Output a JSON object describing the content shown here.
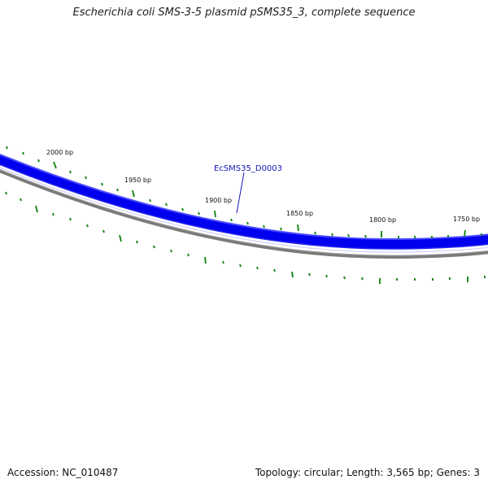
{
  "title": "Escherichia coli SMS-3-5 plasmid pSMS35_3, complete sequence",
  "footer": {
    "accession": "Accession: NC_010487",
    "summary": "Topology: circular; Length: 3,565 bp; Genes: 3"
  },
  "colors": {
    "gene_track": "#0000ee",
    "gene_track_edge": "#2a2aff",
    "backbone": "#808080",
    "ticks": "#1f8a1f",
    "label_text": "#111111",
    "gene_label": "#1515b8"
  },
  "map": {
    "length_bp": 3565,
    "position_labels": [
      "2000 bp",
      "1950 bp",
      "1900 bp",
      "1850 bp",
      "1800 bp",
      "1750 bp"
    ],
    "gene_label": "EcSMS35_D0003"
  }
}
